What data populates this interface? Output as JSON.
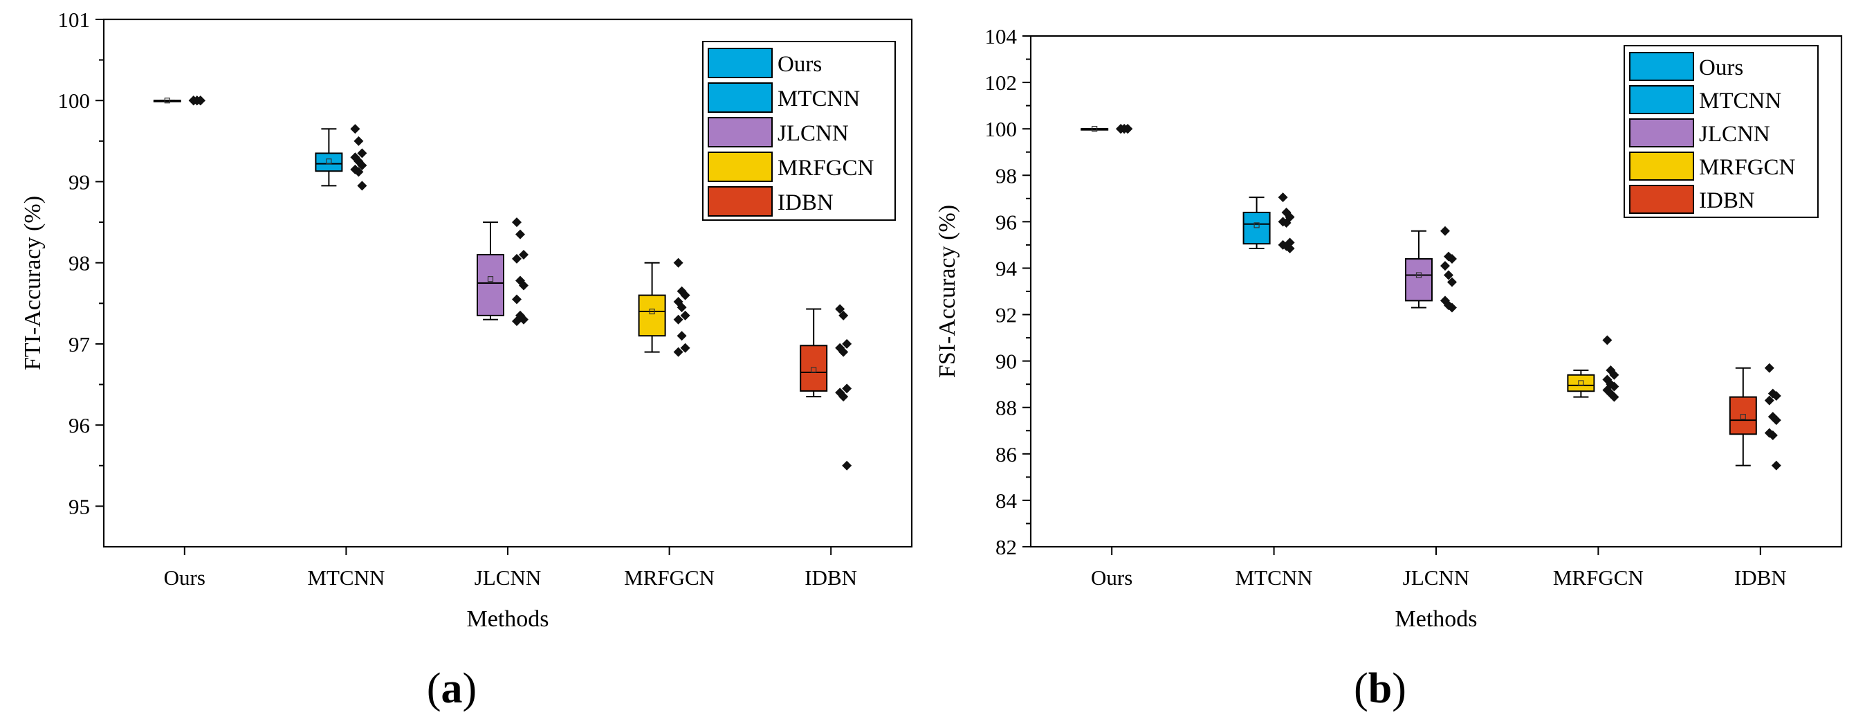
{
  "panel_labels": [
    "(a)",
    "(b)"
  ],
  "chart_data": [
    {
      "type": "box",
      "panel": "(a)",
      "title": "",
      "xlabel": "Methods",
      "ylabel": "FTI-Accuracy (%)",
      "ylim": [
        94.5,
        101
      ],
      "yticks": [
        95,
        96,
        97,
        98,
        99,
        100,
        101
      ],
      "categories": [
        "Ours",
        "MTCNN",
        "JLCNN",
        "MRFGCN",
        "IDBN"
      ],
      "legend": [
        "Ours",
        "MTCNN",
        "JLCNN",
        "MRFGCN",
        "IDBN"
      ],
      "legend_position": "top-right",
      "colors": [
        "#00A8E0",
        "#00A8E0",
        "#A97CC4",
        "#F5CC00",
        "#D9421C"
      ],
      "boxes": [
        {
          "name": "Ours",
          "whisker_low": 100,
          "q1": 100,
          "median": 100,
          "q3": 100,
          "whisker_high": 100,
          "mean": 100,
          "points": [
            100,
            100,
            100,
            100,
            100,
            100,
            100,
            100,
            100,
            100
          ]
        },
        {
          "name": "MTCNN",
          "whisker_low": 98.95,
          "q1": 99.13,
          "median": 99.22,
          "q3": 99.35,
          "whisker_high": 99.65,
          "mean": 99.25,
          "points": [
            99.65,
            99.5,
            99.35,
            99.3,
            99.25,
            99.2,
            99.15,
            99.12,
            98.95
          ]
        },
        {
          "name": "JLCNN",
          "whisker_low": 97.3,
          "q1": 97.35,
          "median": 97.75,
          "q3": 98.1,
          "whisker_high": 98.5,
          "mean": 97.8,
          "points": [
            98.5,
            98.35,
            98.1,
            98.05,
            97.78,
            97.72,
            97.55,
            97.35,
            97.3,
            97.28
          ]
        },
        {
          "name": "MRFGCN",
          "whisker_low": 96.9,
          "q1": 97.1,
          "median": 97.4,
          "q3": 97.6,
          "whisker_high": 98.0,
          "mean": 97.4,
          "points": [
            98.0,
            97.65,
            97.6,
            97.52,
            97.45,
            97.35,
            97.3,
            97.1,
            96.95,
            96.9
          ]
        },
        {
          "name": "IDBN",
          "whisker_low": 96.35,
          "q1": 96.42,
          "median": 96.65,
          "q3": 96.98,
          "whisker_high": 97.43,
          "mean": 96.68,
          "points": [
            97.43,
            97.35,
            97.0,
            96.95,
            96.9,
            96.45,
            96.4,
            96.35,
            95.5
          ]
        }
      ]
    },
    {
      "type": "box",
      "panel": "(b)",
      "title": "",
      "xlabel": "Methods",
      "ylabel": "FSI-Accuracy (%)",
      "ylim": [
        82,
        104
      ],
      "yticks": [
        82,
        84,
        86,
        88,
        90,
        92,
        94,
        96,
        98,
        100,
        102,
        104
      ],
      "categories": [
        "Ours",
        "MTCNN",
        "JLCNN",
        "MRFGCN",
        "IDBN"
      ],
      "legend": [
        "Ours",
        "MTCNN",
        "JLCNN",
        "MRFGCN",
        "IDBN"
      ],
      "legend_position": "top-right",
      "colors": [
        "#00A8E0",
        "#00A8E0",
        "#A97CC4",
        "#F5CC00",
        "#D9421C"
      ],
      "boxes": [
        {
          "name": "Ours",
          "whisker_low": 100,
          "q1": 100,
          "median": 100,
          "q3": 100,
          "whisker_high": 100,
          "mean": 100,
          "points": [
            100,
            100,
            100,
            100,
            100,
            100,
            100,
            100,
            100,
            100
          ]
        },
        {
          "name": "MTCNN",
          "whisker_low": 94.85,
          "q1": 95.05,
          "median": 95.9,
          "q3": 96.4,
          "whisker_high": 97.05,
          "mean": 95.85,
          "points": [
            97.05,
            96.4,
            96.2,
            96.0,
            95.95,
            95.1,
            95.0,
            94.95,
            94.85
          ]
        },
        {
          "name": "JLCNN",
          "whisker_low": 92.3,
          "q1": 92.6,
          "median": 93.7,
          "q3": 94.4,
          "whisker_high": 95.6,
          "mean": 93.7,
          "points": [
            95.6,
            94.5,
            94.4,
            94.1,
            93.7,
            93.4,
            92.6,
            92.4,
            92.3
          ]
        },
        {
          "name": "MRFGCN",
          "whisker_low": 88.45,
          "q1": 88.7,
          "median": 88.95,
          "q3": 89.4,
          "whisker_high": 89.6,
          "mean": 89.05,
          "points": [
            90.9,
            89.6,
            89.4,
            89.2,
            89.0,
            88.9,
            88.75,
            88.6,
            88.45
          ]
        },
        {
          "name": "IDBN",
          "whisker_low": 85.5,
          "q1": 86.85,
          "median": 87.45,
          "q3": 88.45,
          "whisker_high": 89.7,
          "mean": 87.6,
          "points": [
            89.7,
            88.6,
            88.5,
            88.3,
            87.6,
            87.45,
            86.9,
            86.8,
            85.5
          ]
        }
      ]
    }
  ]
}
